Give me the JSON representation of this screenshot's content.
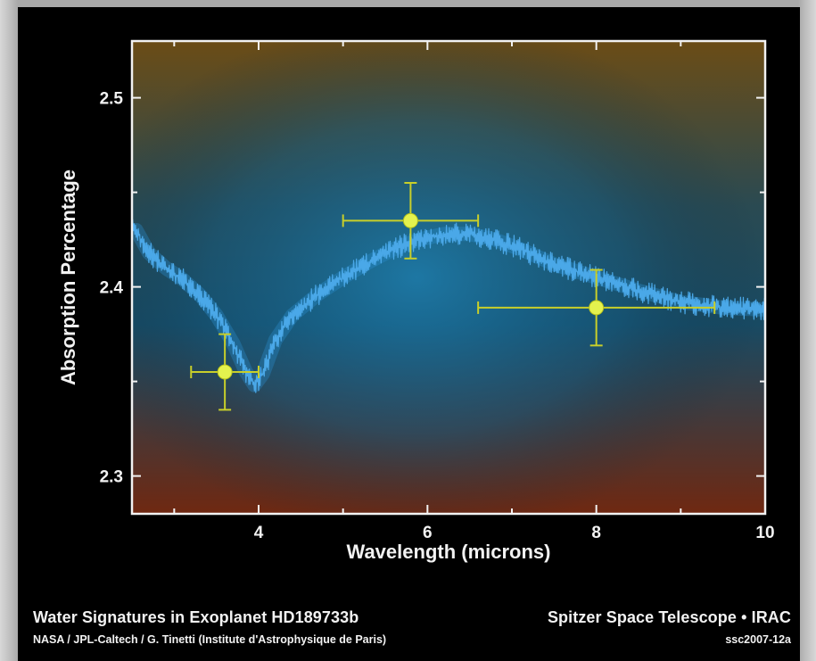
{
  "chart_data": {
    "type": "scatter",
    "xlabel": "Wavelength (microns)",
    "ylabel": "Absorption Percentage",
    "xlim": [
      2.5,
      10
    ],
    "ylim": [
      2.28,
      2.53
    ],
    "xticks": [
      4,
      6,
      8,
      10
    ],
    "yticks": [
      2.3,
      2.4,
      2.5
    ],
    "grid": false,
    "legend": "none",
    "points": [
      {
        "x": 3.6,
        "y": 2.355,
        "x_err": 0.4,
        "y_err": 0.02
      },
      {
        "x": 5.8,
        "y": 2.435,
        "x_err": 0.8,
        "y_err": 0.02
      },
      {
        "x": 8.0,
        "y": 2.389,
        "x_err": 1.4,
        "y_err": 0.02
      }
    ],
    "model_curve": {
      "x": [
        2.55,
        2.7,
        2.9,
        3.1,
        3.3,
        3.5,
        3.7,
        3.85,
        3.95,
        4.05,
        4.2,
        4.4,
        4.7,
        5.0,
        5.3,
        5.6,
        5.9,
        6.2,
        6.5,
        6.8,
        7.1,
        7.5,
        8.0,
        8.5,
        9.0,
        9.5,
        10.0
      ],
      "y": [
        2.43,
        2.418,
        2.41,
        2.404,
        2.396,
        2.385,
        2.37,
        2.355,
        2.348,
        2.354,
        2.372,
        2.385,
        2.396,
        2.405,
        2.413,
        2.42,
        2.425,
        2.428,
        2.428,
        2.425,
        2.42,
        2.412,
        2.405,
        2.398,
        2.392,
        2.389,
        2.388
      ]
    },
    "colors": {
      "marker": "#e4f24e",
      "errorbar": "#c8cf2a",
      "curve": "#4aa8e8",
      "axis": "#f2f2f2",
      "background_top": "#6a4a14",
      "background_mid": "#0f4d6a",
      "background_bottom": "#6e2410"
    }
  },
  "footer": {
    "title_left": "Water Signatures in Exoplanet  HD189733b",
    "title_right": "Spitzer Space Telescope • IRAC",
    "credit_left": "NASA / JPL-Caltech / G. Tinetti (Institute d'Astrophysique de Paris)",
    "credit_right": "ssc2007-12a"
  }
}
